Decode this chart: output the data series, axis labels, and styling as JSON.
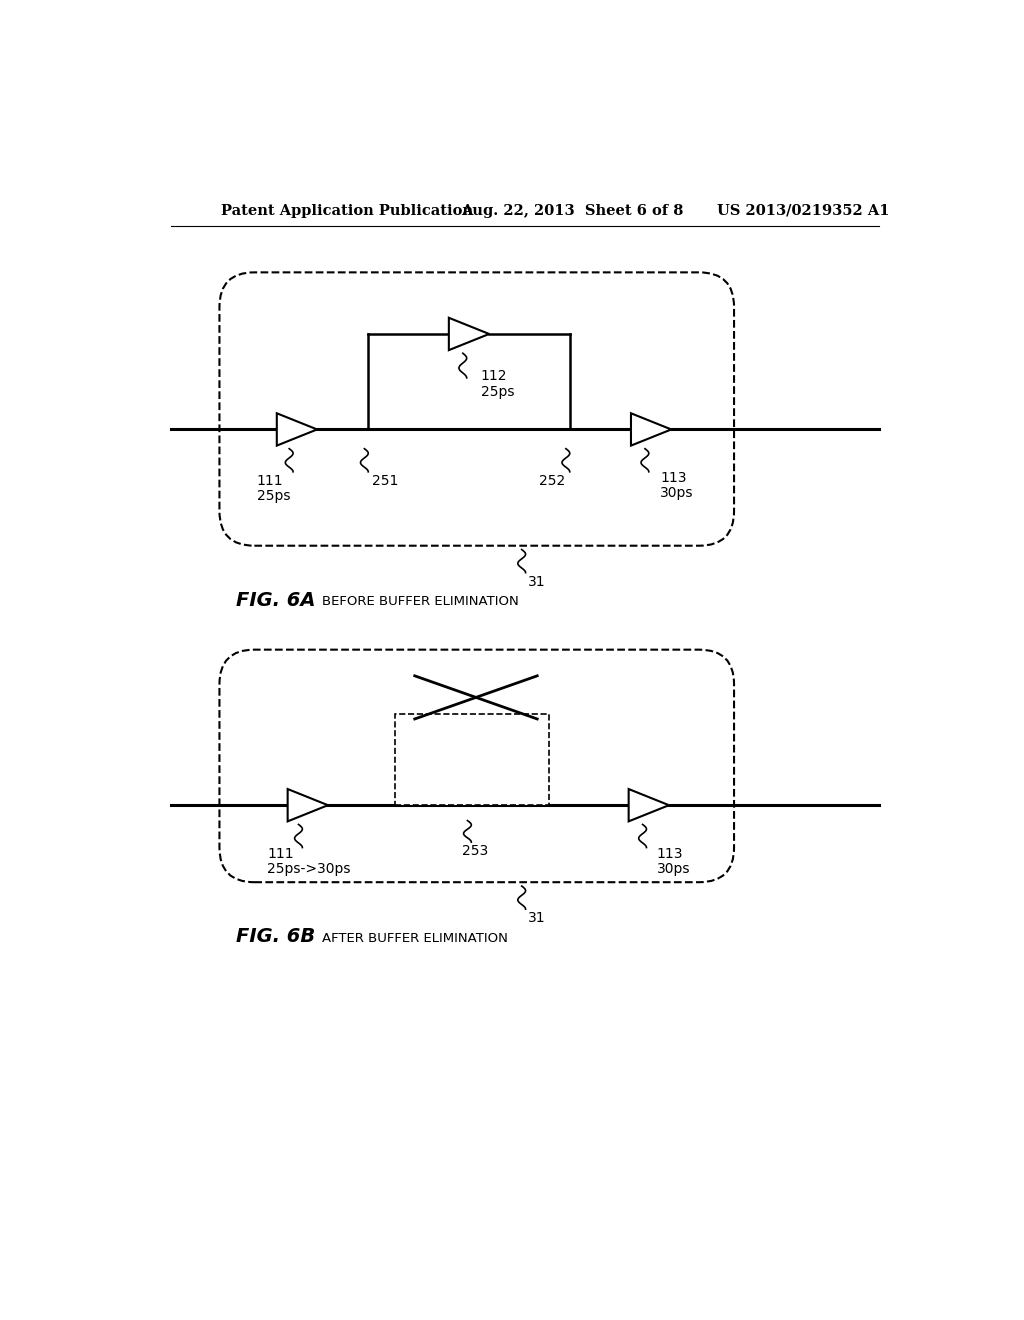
{
  "bg_color": "#ffffff",
  "header_left": "Patent Application Publication",
  "header_mid": "Aug. 22, 2013  Sheet 6 of 8",
  "header_right": "US 2013/0219352 A1",
  "fig6a_label": "FIG. 6A",
  "fig6a_caption": "BEFORE BUFFER ELIMINATION",
  "fig6b_label": "FIG. 6B",
  "fig6b_caption": "AFTER BUFFER ELIMINATION",
  "label_color": "#000000"
}
